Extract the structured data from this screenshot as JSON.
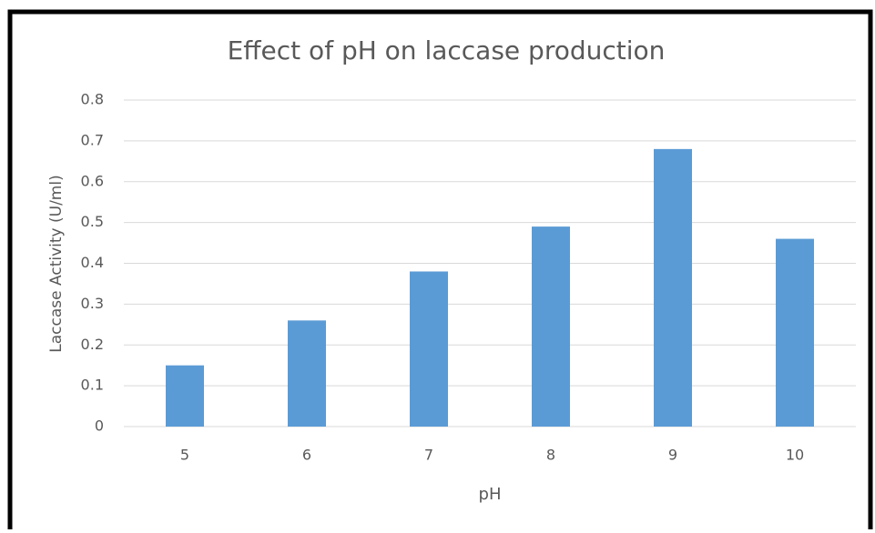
{
  "chart_data": {
    "type": "bar",
    "title": "Effect of pH on laccase production",
    "x_label": "pH",
    "y_label": "Laccase Activity (U/ml)",
    "categories": [
      "5",
      "6",
      "7",
      "8",
      "9",
      "10"
    ],
    "values": [
      0.15,
      0.26,
      0.38,
      0.49,
      0.68,
      0.46
    ],
    "color": "#5b9bd5",
    "ylim": [
      0,
      0.8
    ],
    "yticks": [
      0,
      0.1,
      0.2,
      0.3,
      0.4,
      0.5,
      0.6,
      0.7,
      0.8
    ],
    "grid": true
  }
}
